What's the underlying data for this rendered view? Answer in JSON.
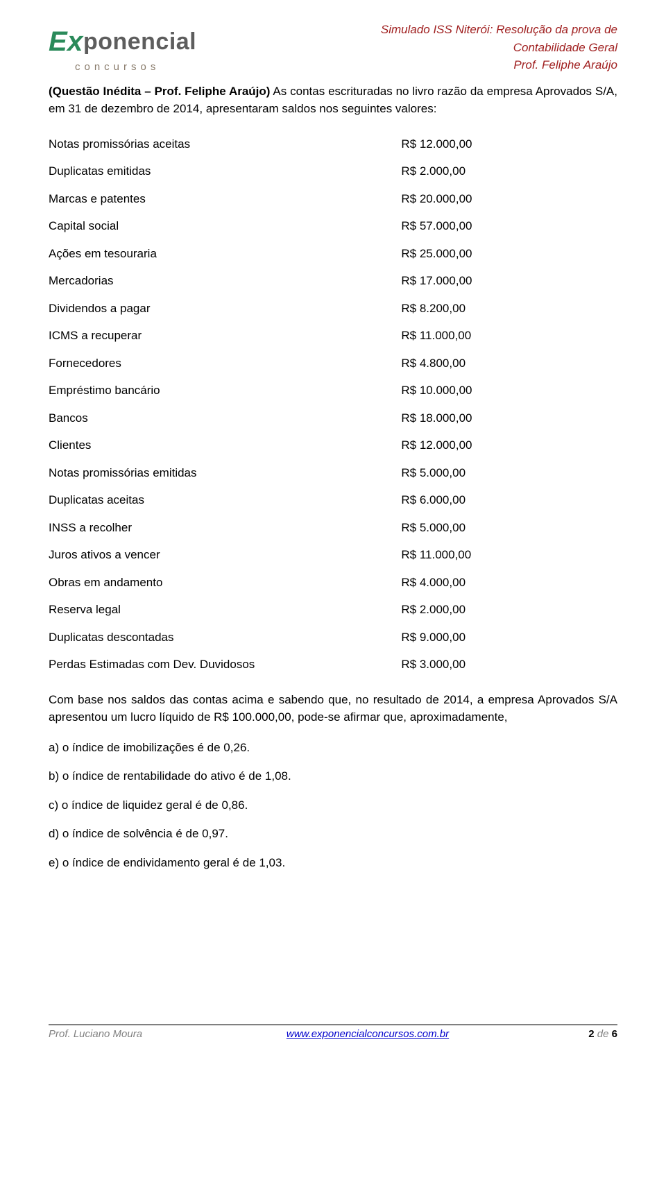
{
  "header": {
    "logo_x": "Ex",
    "logo_rest": "ponencial",
    "logo_sub": "concursos",
    "line1": "Simulado ISS Niterói: Resolução da prova de",
    "line2": "Contabilidade Geral",
    "line3": "Prof. Feliphe Araújo",
    "colors": {
      "accent_green": "#2a8a5a",
      "accent_gray": "#5d5d5d",
      "header_red": "#a02020",
      "footer_gray": "#808080",
      "link_blue": "#0000cc"
    }
  },
  "question": {
    "prefix_bold": "(Questão Inédita – Prof. Feliphe Araújo)",
    "body": " As contas escrituradas no livro razão da empresa Aprovados S/A, em 31 de dezembro de 2014, apresentaram saldos nos seguintes valores:"
  },
  "accounts": [
    {
      "label": "Notas promissórias aceitas",
      "value": "R$ 12.000,00"
    },
    {
      "label": "Duplicatas emitidas",
      "value": "R$ 2.000,00"
    },
    {
      "label": "Marcas e patentes",
      "value": "R$ 20.000,00"
    },
    {
      "label": "Capital social",
      "value": "R$ 57.000,00"
    },
    {
      "label": "Ações em tesouraria",
      "value": "R$ 25.000,00"
    },
    {
      "label": "Mercadorias",
      "value": "R$ 17.000,00"
    },
    {
      "label": "Dividendos a pagar",
      "value": "R$ 8.200,00"
    },
    {
      "label": "ICMS a recuperar",
      "value": "R$ 11.000,00"
    },
    {
      "label": "Fornecedores",
      "value": "R$ 4.800,00"
    },
    {
      "label": "Empréstimo bancário",
      "value": "R$ 10.000,00"
    },
    {
      "label": "Bancos",
      "value": "R$ 18.000,00"
    },
    {
      "label": "Clientes",
      "value": "R$ 12.000,00"
    },
    {
      "label": "Notas promissórias emitidas",
      "value": "R$ 5.000,00"
    },
    {
      "label": "Duplicatas aceitas",
      "value": "R$ 6.000,00"
    },
    {
      "label": "INSS a recolher",
      "value": "R$ 5.000,00"
    },
    {
      "label": "Juros ativos a vencer",
      "value": "R$ 11.000,00"
    },
    {
      "label": "Obras em andamento",
      "value": "R$ 4.000,00"
    },
    {
      "label": "Reserva legal",
      "value": "R$ 2.000,00"
    },
    {
      "label": "Duplicatas descontadas",
      "value": "R$ 9.000,00"
    },
    {
      "label": "Perdas Estimadas com Dev. Duvidosos",
      "value": "R$ 3.000,00"
    }
  ],
  "post_text": "Com base nos saldos das contas acima e sabendo que, no resultado de 2014, a empresa Aprovados S/A apresentou um lucro líquido de R$ 100.000,00, pode-se afirmar que, aproximadamente,",
  "options": {
    "a": "a) o índice de imobilizações é de 0,26.",
    "b": "b) o índice de rentabilidade do ativo é de 1,08.",
    "c": "c) o índice de liquidez geral é de 0,86.",
    "d": "d) o índice de solvência é de 0,97.",
    "e": "e) o índice de endividamento geral é de 1,03."
  },
  "footer": {
    "left": "Prof. Luciano Moura",
    "url": "www.exponencialconcursos.com.br",
    "page_current": "2",
    "page_sep": " de ",
    "page_total": "6"
  }
}
